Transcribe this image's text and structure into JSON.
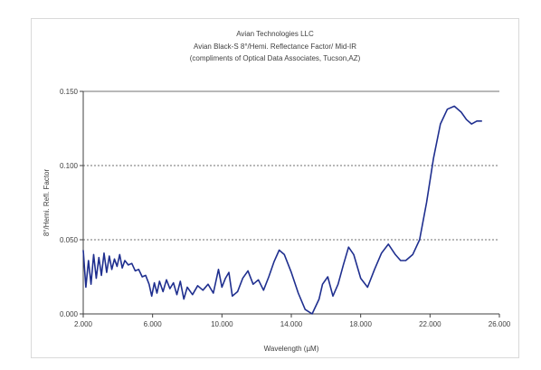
{
  "chart_data": {
    "type": "line",
    "title": "Avian Technologies LLC",
    "subtitle_lines": [
      "Avian Black-S 8°/Hemi. Reflectance Factor/ Mid-IR",
      "(compliments of Optical Data Associates, Tucson,AZ)"
    ],
    "xlabel": "Wavelength (µM)",
    "ylabel": "8°/Hemi. Refl. Factor",
    "xlim": [
      2.0,
      26.0
    ],
    "ylim": [
      0.0,
      0.15
    ],
    "x_ticks": [
      "2.000",
      "6.000",
      "10.000",
      "14.000",
      "18.000",
      "22.000",
      "26.000"
    ],
    "x_tick_values": [
      2,
      6,
      10,
      14,
      18,
      22,
      26
    ],
    "y_ticks": [
      "0.000",
      "0.050",
      "0.100",
      "0.150"
    ],
    "y_tick_values": [
      0,
      0.05,
      0.1,
      0.15
    ],
    "grid": "horizontal dashed at 0.050 and 0.100",
    "line_color": "#1f2f8f",
    "series": [
      {
        "x": [
          2.0,
          2.15,
          2.3,
          2.45,
          2.6,
          2.75,
          2.9,
          3.05,
          3.2,
          3.35,
          3.5,
          3.65,
          3.8,
          3.95,
          4.1,
          4.25,
          4.4,
          4.6,
          4.8,
          5.0,
          5.2,
          5.4,
          5.6,
          5.8,
          5.95,
          6.1,
          6.25,
          6.4,
          6.6,
          6.8,
          7.0,
          7.2,
          7.4,
          7.6,
          7.8,
          8.0,
          8.3,
          8.6,
          8.9,
          9.2,
          9.5,
          9.8,
          10.0,
          10.2,
          10.4,
          10.6,
          10.9,
          11.2,
          11.5,
          11.8,
          12.1,
          12.4,
          12.7,
          13.0,
          13.3,
          13.6,
          14.0,
          14.4,
          14.8,
          15.2,
          15.6,
          15.8,
          16.1,
          16.4,
          16.7,
          17.0,
          17.3,
          17.6,
          18.0,
          18.4,
          18.8,
          19.2,
          19.6,
          20.0,
          20.3,
          20.6,
          21.0,
          21.4,
          21.8,
          22.2,
          22.6,
          23.0,
          23.4,
          23.8,
          24.1,
          24.4,
          24.7,
          25.0
        ],
        "y": [
          0.043,
          0.018,
          0.036,
          0.02,
          0.04,
          0.024,
          0.038,
          0.026,
          0.041,
          0.028,
          0.039,
          0.03,
          0.037,
          0.032,
          0.04,
          0.031,
          0.036,
          0.033,
          0.034,
          0.029,
          0.03,
          0.025,
          0.026,
          0.02,
          0.012,
          0.021,
          0.014,
          0.022,
          0.015,
          0.023,
          0.017,
          0.021,
          0.013,
          0.022,
          0.01,
          0.018,
          0.013,
          0.019,
          0.016,
          0.02,
          0.014,
          0.03,
          0.018,
          0.024,
          0.028,
          0.012,
          0.015,
          0.024,
          0.029,
          0.02,
          0.023,
          0.016,
          0.025,
          0.035,
          0.043,
          0.04,
          0.028,
          0.014,
          0.003,
          0.0,
          0.01,
          0.02,
          0.025,
          0.012,
          0.02,
          0.033,
          0.045,
          0.04,
          0.024,
          0.018,
          0.03,
          0.041,
          0.047,
          0.04,
          0.036,
          0.036,
          0.04,
          0.05,
          0.075,
          0.105,
          0.128,
          0.138,
          0.14,
          0.136,
          0.131,
          0.128,
          0.13,
          0.13
        ]
      }
    ]
  }
}
